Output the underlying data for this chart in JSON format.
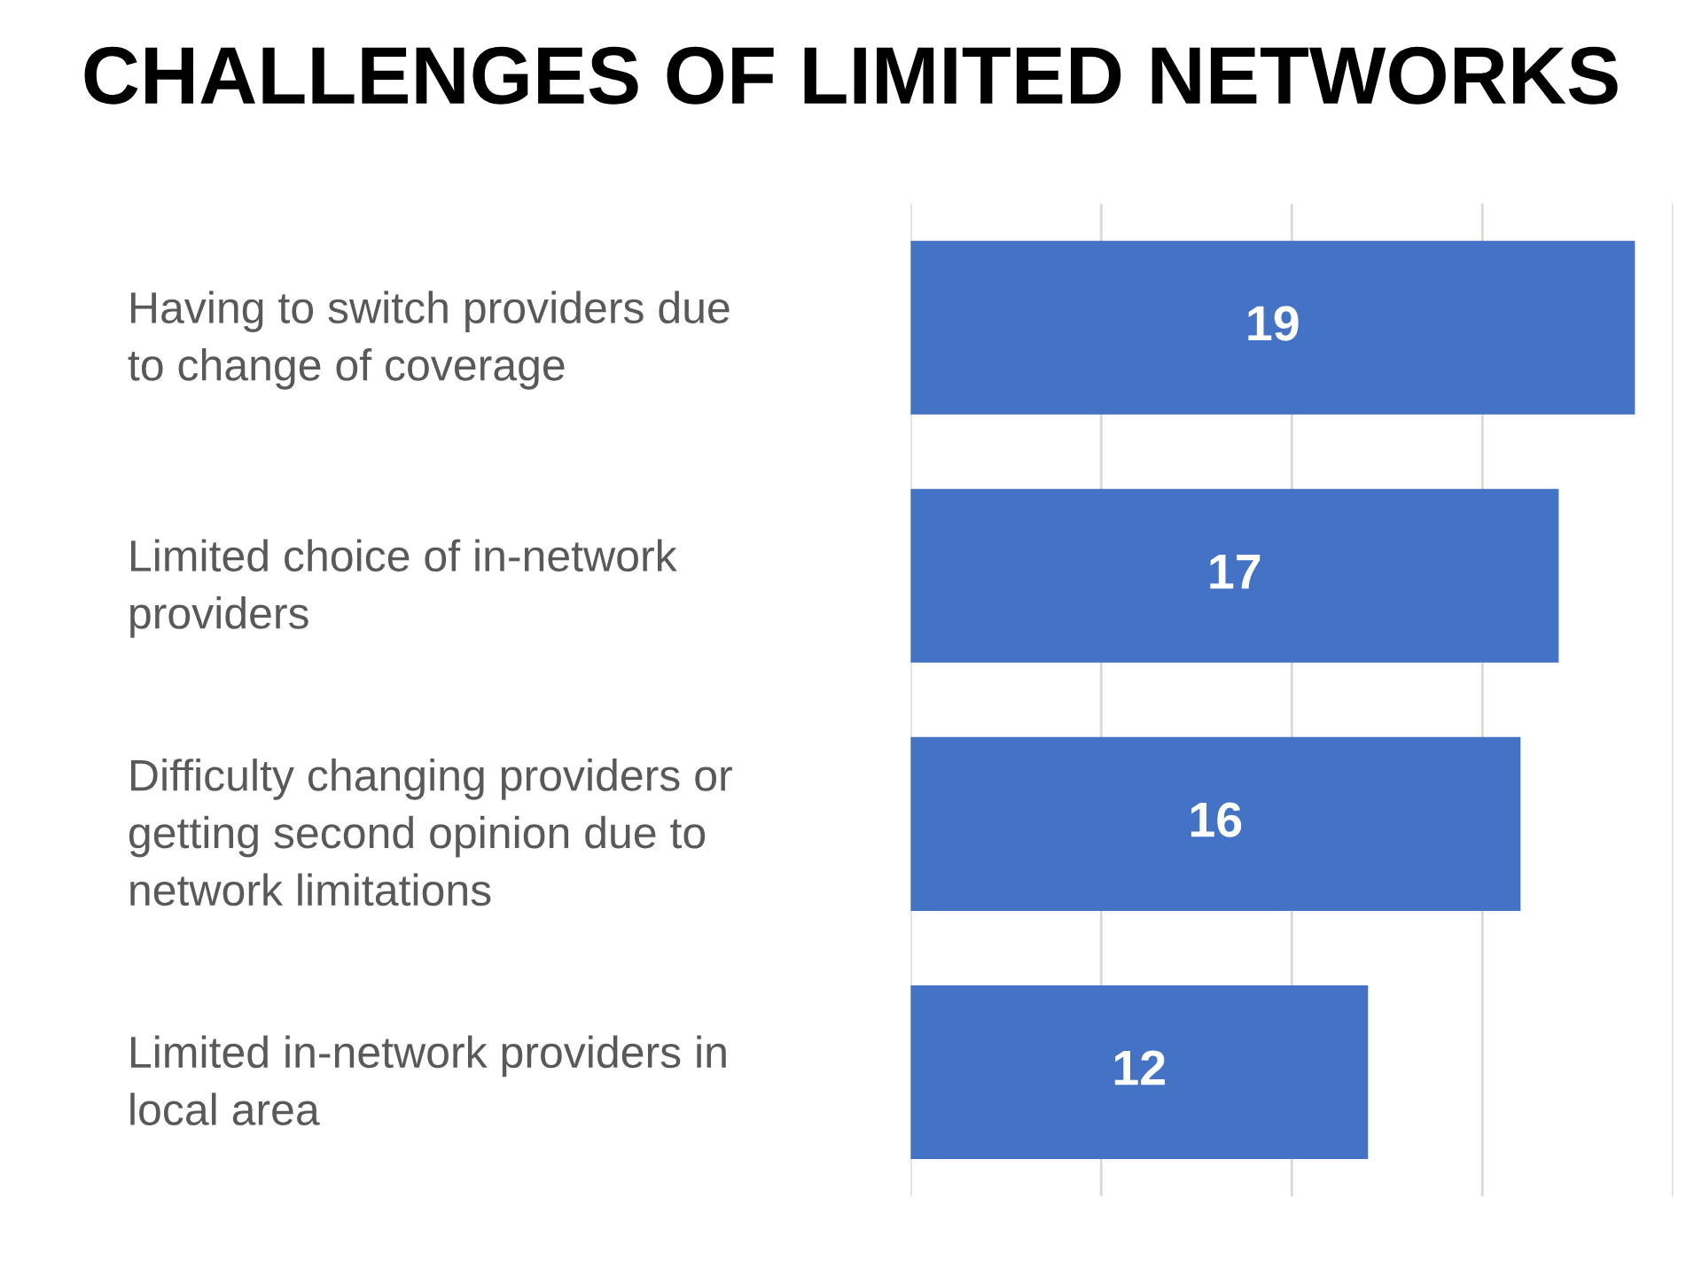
{
  "chart_data": {
    "type": "bar",
    "orientation": "horizontal",
    "title": "CHALLENGES OF LIMITED NETWORKS",
    "categories": [
      "Having to switch providers due\nto change of coverage",
      "Limited choice of in-network\nproviders",
      "Difficulty changing providers or\ngetting second opinion due to\nnetwork limitations",
      "Limited in-network providers in\nlocal area"
    ],
    "values": [
      19,
      17,
      16,
      12
    ],
    "color": "#4472c4",
    "data_labels": true,
    "xlim": [
      0,
      20
    ],
    "xticks": [
      {
        "value": 0,
        "label": null
      },
      {
        "value": 5,
        "label": null
      },
      {
        "value": 10,
        "label": null
      },
      {
        "value": 15,
        "label": null
      },
      {
        "value": 20,
        "label": null
      }
    ],
    "grid": "x",
    "tick_labels": "y"
  }
}
